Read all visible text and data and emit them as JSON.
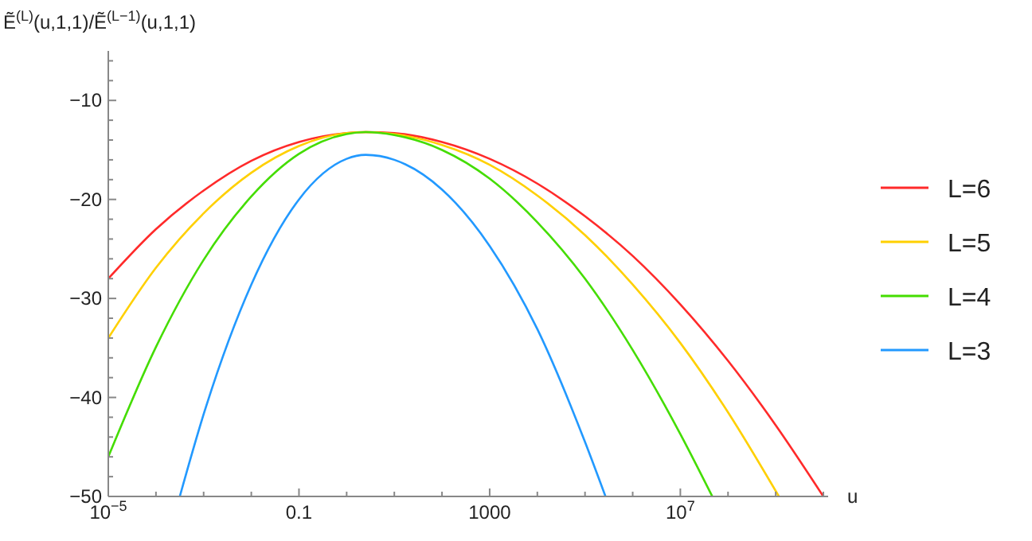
{
  "chart_data": {
    "type": "line",
    "ylabel": "Ẽ$^{(L)}$(u,1,1)/Ẽ$^{(L−1)}$(u,1,1)",
    "xlabel": "u",
    "log": "x",
    "legend": "right",
    "grid": false,
    "line_style": "solid",
    "xlim": [
      1e-05,
      12600000000.0
    ],
    "ylim": [
      -50,
      -5
    ],
    "xticks": [
      {
        "value": 1e-05,
        "label": "10$^{−5}$"
      },
      {
        "value": 0.0001,
        "label": null
      },
      {
        "value": 0.001,
        "label": null
      },
      {
        "value": 0.01,
        "label": null
      },
      0.1,
      {
        "value": 1,
        "label": null
      },
      {
        "value": 10,
        "label": null
      },
      {
        "value": 100,
        "label": null
      },
      1000,
      {
        "value": 10000.0,
        "label": null
      },
      {
        "value": 100000.0,
        "label": null
      },
      {
        "value": 1000000.0,
        "label": null
      },
      {
        "value": 10000000.0,
        "label": "10$^{7}$"
      },
      {
        "value": 100000000.0,
        "label": null
      },
      {
        "value": 1000000000.0,
        "label": null
      },
      {
        "value": 10000000000.0,
        "label": null
      }
    ],
    "yticks": [
      -50,
      {
        "value": -48,
        "label": null
      },
      {
        "value": -46,
        "label": null
      },
      {
        "value": -44,
        "label": null
      },
      {
        "value": -42,
        "label": null
      },
      -40,
      {
        "value": -38,
        "label": null
      },
      {
        "value": -36,
        "label": null
      },
      {
        "value": -34,
        "label": null
      },
      {
        "value": -32,
        "label": null
      },
      -30,
      {
        "value": -28,
        "label": null
      },
      {
        "value": -26,
        "label": null
      },
      {
        "value": -24,
        "label": null
      },
      {
        "value": -22,
        "label": null
      },
      -20,
      {
        "value": -18,
        "label": null
      },
      {
        "value": -16,
        "label": null
      },
      {
        "value": -14,
        "label": null
      },
      {
        "value": -12,
        "label": null
      },
      -10,
      {
        "value": -8,
        "label": null
      },
      {
        "value": -6,
        "label": null
      }
    ],
    "series": [
      {
        "name": "L=6",
        "color": "#ff2a2a",
        "x": [
          1e-05,
          0.0001,
          0.001,
          0.01,
          0.1,
          1,
          2.512,
          10,
          100,
          1000,
          10000.0,
          100000.0,
          1000000.0,
          10000000.0,
          100000000.0,
          1000000000.0,
          10000000000.0
        ],
        "values": [
          -28.0,
          -23.0,
          -19.1,
          -16.1,
          -14.2,
          -13.3,
          -13.2,
          -13.3,
          -14.2,
          -15.9,
          -18.4,
          -21.7,
          -25.7,
          -30.6,
          -36.3,
          -42.8,
          -50
        ]
      },
      {
        "name": "L=5",
        "color": "#ffd000",
        "x": [
          1e-05,
          0.0001,
          0.001,
          0.01,
          0.1,
          1,
          2.512,
          10,
          100,
          1000,
          10000.0,
          100000.0,
          1000000.0,
          10000000.0,
          100000000.0,
          1170000000.0
        ],
        "values": [
          -34.0,
          -26.9,
          -21.4,
          -17.3,
          -14.6,
          -13.3,
          -13.2,
          -13.4,
          -14.5,
          -16.5,
          -19.6,
          -23.6,
          -28.6,
          -34.5,
          -41.5,
          -50
        ]
      },
      {
        "name": "L=4",
        "color": "#44dd00",
        "x": [
          1e-05,
          0.0001,
          0.001,
          0.01,
          0.1,
          1,
          2.512,
          10,
          100,
          1000,
          10000.0,
          100000.0,
          1000000.0,
          10000000.0,
          46800000.0
        ],
        "values": [
          -46.0,
          -34.9,
          -26.1,
          -19.7,
          -15.4,
          -13.4,
          -13.2,
          -13.5,
          -15.0,
          -17.9,
          -22.3,
          -28.0,
          -35.2,
          -43.7,
          -50
        ]
      },
      {
        "name": "L=3",
        "color": "#2299ff",
        "x": [
          0.000316,
          0.001,
          0.01,
          0.1,
          1,
          2.512,
          10,
          100,
          1000,
          10000.0,
          100000.0,
          269000.0
        ],
        "values": [
          -50,
          -41.7,
          -28.6,
          -20.0,
          -15.9,
          -15.5,
          -16.0,
          -19.0,
          -24.7,
          -33.1,
          -44.5,
          -50
        ]
      }
    ]
  }
}
